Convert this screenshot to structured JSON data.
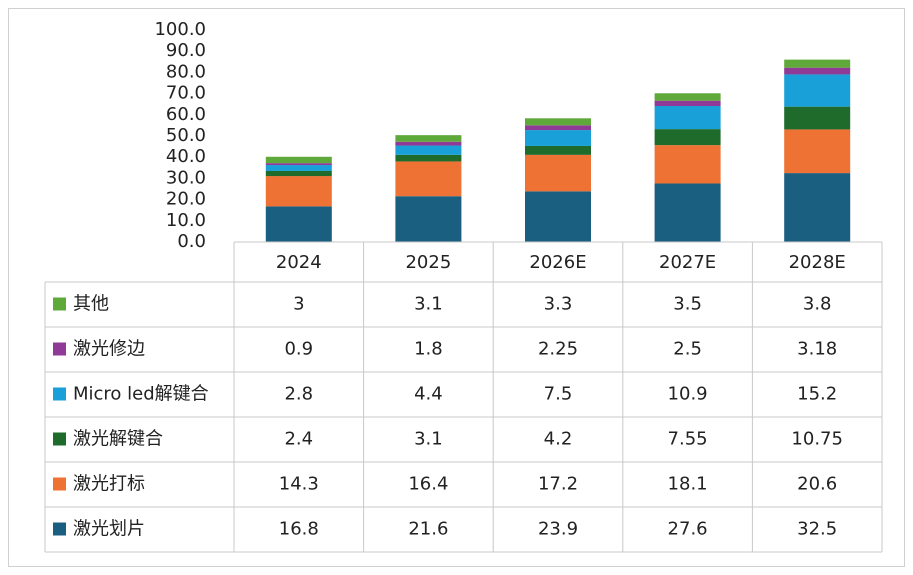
{
  "chart_data": {
    "type": "stacked-bar",
    "categories": [
      "2024",
      "2025",
      "2026E",
      "2027E",
      "2028E"
    ],
    "series": [
      {
        "name": "其他",
        "color": "#5fa83a",
        "values": [
          3,
          3.1,
          3.3,
          3.5,
          3.8
        ]
      },
      {
        "name": "激光修边",
        "color": "#8e3a96",
        "values": [
          0.9,
          1.8,
          2.25,
          2.5,
          3.18
        ]
      },
      {
        "name": "Micro led解键合",
        "color": "#1aa0d8",
        "values": [
          2.8,
          4.4,
          7.5,
          10.9,
          15.2
        ]
      },
      {
        "name": "激光解键合",
        "color": "#1e6b2b",
        "values": [
          2.4,
          3.1,
          4.2,
          7.55,
          10.75
        ]
      },
      {
        "name": "激光打标",
        "color": "#ed7233",
        "values": [
          14.3,
          16.4,
          17.2,
          18.1,
          20.6
        ]
      },
      {
        "name": "激光划片",
        "color": "#1a5e80",
        "values": [
          16.8,
          21.6,
          23.9,
          27.6,
          32.5
        ]
      }
    ],
    "ylim": [
      0,
      100
    ],
    "yticks": [
      {
        "value": 0,
        "label": "0.0"
      },
      {
        "value": 10,
        "label": "10.0"
      },
      {
        "value": 20,
        "label": "20.0"
      },
      {
        "value": 30,
        "label": "30.0"
      },
      {
        "value": 40,
        "label": "40.0"
      },
      {
        "value": 50,
        "label": "50.0"
      },
      {
        "value": 60,
        "label": "60.0"
      },
      {
        "value": 70,
        "label": "70.0"
      },
      {
        "value": 80,
        "label": "80.0"
      },
      {
        "value": 90,
        "label": "90.0"
      },
      {
        "value": 100,
        "label": "100.0"
      }
    ]
  }
}
